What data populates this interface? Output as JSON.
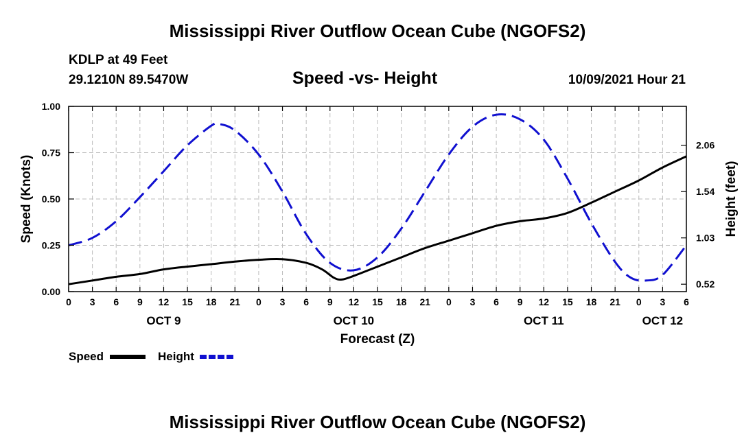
{
  "page": {
    "title_top": "Mississippi River Outflow Ocean Cube (NGOFS2)",
    "title_bottom": "Mississippi River Outflow Ocean Cube (NGOFS2)",
    "station_line": "KDLP at 49 Feet",
    "coords_line": "29.1210N  89.5470W",
    "subtitle": "Speed -vs- Height",
    "timestamp": "10/09/2021 Hour 21"
  },
  "colors": {
    "speed": "#000000",
    "height": "#1010d0",
    "grid": "#bbbbbb"
  },
  "chart_data": {
    "type": "line",
    "xlabel": "Forecast (Z)",
    "ylabel_left": "Speed (Knots)",
    "ylabel_right": "Height (feet)",
    "x_range_hours": [
      0,
      78
    ],
    "ylim_left": [
      0,
      1.0
    ],
    "y_left_ticks": [
      "0.00",
      "0.25",
      "0.50",
      "0.75",
      "1.00"
    ],
    "y_right_ticks": [
      {
        "label": "0.52",
        "left_equiv": 0.04
      },
      {
        "label": "1.03",
        "left_equiv": 0.29
      },
      {
        "label": "1.54",
        "left_equiv": 0.54
      },
      {
        "label": "2.06",
        "left_equiv": 0.79
      }
    ],
    "x_ticks": [
      {
        "h": 0,
        "label": "0"
      },
      {
        "h": 3,
        "label": "3"
      },
      {
        "h": 6,
        "label": "6"
      },
      {
        "h": 9,
        "label": "9"
      },
      {
        "h": 12,
        "label": "12"
      },
      {
        "h": 15,
        "label": "15"
      },
      {
        "h": 18,
        "label": "18"
      },
      {
        "h": 21,
        "label": "21"
      },
      {
        "h": 24,
        "label": "0"
      },
      {
        "h": 27,
        "label": "3"
      },
      {
        "h": 30,
        "label": "6"
      },
      {
        "h": 33,
        "label": "9"
      },
      {
        "h": 36,
        "label": "12"
      },
      {
        "h": 39,
        "label": "15"
      },
      {
        "h": 42,
        "label": "18"
      },
      {
        "h": 45,
        "label": "21"
      },
      {
        "h": 48,
        "label": "0"
      },
      {
        "h": 51,
        "label": "3"
      },
      {
        "h": 54,
        "label": "6"
      },
      {
        "h": 57,
        "label": "9"
      },
      {
        "h": 60,
        "label": "12"
      },
      {
        "h": 63,
        "label": "15"
      },
      {
        "h": 66,
        "label": "18"
      },
      {
        "h": 69,
        "label": "21"
      },
      {
        "h": 72,
        "label": "0"
      },
      {
        "h": 75,
        "label": "3"
      },
      {
        "h": 78,
        "label": "6"
      }
    ],
    "date_labels": [
      {
        "h": 12,
        "label": "OCT 9"
      },
      {
        "h": 36,
        "label": "OCT 10"
      },
      {
        "h": 60,
        "label": "OCT 11"
      },
      {
        "h": 75,
        "label": "OCT 12"
      }
    ],
    "series": [
      {
        "name": "Speed",
        "style": "solid",
        "axis": "left",
        "points": [
          [
            0,
            0.04
          ],
          [
            3,
            0.06
          ],
          [
            6,
            0.08
          ],
          [
            9,
            0.095
          ],
          [
            12,
            0.12
          ],
          [
            15,
            0.135
          ],
          [
            18,
            0.148
          ],
          [
            21,
            0.162
          ],
          [
            24,
            0.172
          ],
          [
            27,
            0.175
          ],
          [
            30,
            0.155
          ],
          [
            32,
            0.12
          ],
          [
            33.5,
            0.075
          ],
          [
            34.5,
            0.065
          ],
          [
            36,
            0.085
          ],
          [
            39,
            0.135
          ],
          [
            42,
            0.185
          ],
          [
            45,
            0.235
          ],
          [
            48,
            0.275
          ],
          [
            51,
            0.315
          ],
          [
            54,
            0.355
          ],
          [
            57,
            0.38
          ],
          [
            60,
            0.395
          ],
          [
            63,
            0.425
          ],
          [
            66,
            0.48
          ],
          [
            69,
            0.54
          ],
          [
            72,
            0.6
          ],
          [
            75,
            0.67
          ],
          [
            78,
            0.73
          ]
        ]
      },
      {
        "name": "Height",
        "style": "dashed",
        "axis": "right_as_left",
        "points": [
          [
            0,
            0.25
          ],
          [
            3,
            0.29
          ],
          [
            6,
            0.38
          ],
          [
            9,
            0.51
          ],
          [
            12,
            0.65
          ],
          [
            15,
            0.79
          ],
          [
            18,
            0.895
          ],
          [
            19,
            0.905
          ],
          [
            21,
            0.87
          ],
          [
            24,
            0.74
          ],
          [
            27,
            0.54
          ],
          [
            30,
            0.31
          ],
          [
            33,
            0.155
          ],
          [
            36,
            0.115
          ],
          [
            39,
            0.185
          ],
          [
            42,
            0.34
          ],
          [
            45,
            0.54
          ],
          [
            48,
            0.74
          ],
          [
            51,
            0.89
          ],
          [
            54,
            0.955
          ],
          [
            57,
            0.93
          ],
          [
            60,
            0.82
          ],
          [
            63,
            0.61
          ],
          [
            66,
            0.37
          ],
          [
            69,
            0.16
          ],
          [
            71,
            0.075
          ],
          [
            73,
            0.06
          ],
          [
            75,
            0.09
          ],
          [
            78,
            0.25
          ]
        ]
      }
    ],
    "legend": [
      {
        "label": "Speed",
        "style": "solid"
      },
      {
        "label": "Height",
        "style": "dashed"
      }
    ]
  }
}
